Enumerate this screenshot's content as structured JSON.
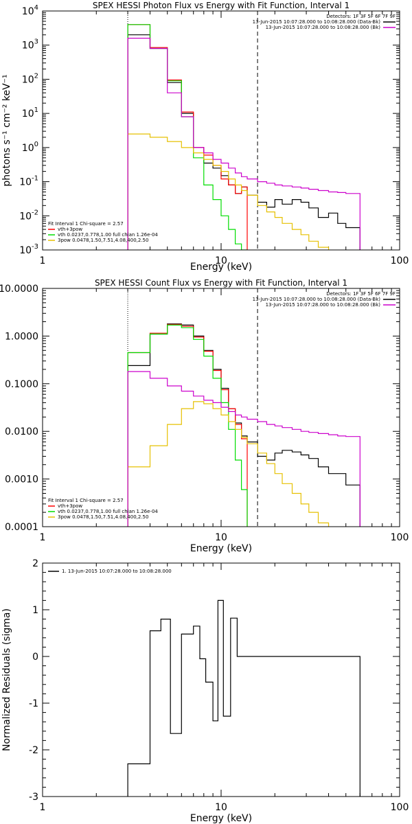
{
  "chart_data": [
    {
      "type": "line",
      "title": "SPEX HESSI Photon Flux vs Energy with Fit Function, Interval 1",
      "xlabel": "Energy (keV)",
      "ylabel": "photons s⁻¹ cm⁻² keV⁻¹",
      "xscale": "log",
      "yscale": "log",
      "xlim": [
        1,
        100
      ],
      "ylim": [
        0.001,
        10000
      ],
      "xticks": [
        {
          "v": 1,
          "label": "1"
        },
        {
          "v": 10,
          "label": "10"
        },
        {
          "v": 100,
          "label": "100"
        }
      ],
      "yticks": [
        {
          "v": 0.001,
          "base": "10",
          "exp": "-3"
        },
        {
          "v": 0.01,
          "base": "10",
          "exp": "-2"
        },
        {
          "v": 0.1,
          "base": "10",
          "exp": "-1"
        },
        {
          "v": 1,
          "base": "10",
          "exp": "0"
        },
        {
          "v": 10,
          "base": "10",
          "exp": "1"
        },
        {
          "v": 100,
          "base": "10",
          "exp": "2"
        },
        {
          "v": 1000,
          "base": "10",
          "exp": "3"
        },
        {
          "v": 10000,
          "base": "10",
          "exp": "4"
        }
      ],
      "vlines": [
        {
          "x": 3.0,
          "style": "dotted"
        },
        {
          "x": 16.0,
          "style": "dashed"
        }
      ],
      "legend_tr": {
        "header": "Detectors: 1F 3F 5F 6F 7F 9F",
        "entries": [
          {
            "label": "13-Jun-2015 10:07:28.000 to 10:08:28.000 (Data-Bk)",
            "color": "#000000"
          },
          {
            "label": "13-Jun-2015 10:07:28.000 to 10:08:28.000 (Bk)",
            "color": "#cc00cc"
          }
        ]
      },
      "legend_bl": {
        "header": "Fit Interval 1     Chi-square = 2.57",
        "entries": [
          {
            "label": "vth+3pow",
            "color": "#ff0000"
          },
          {
            "label": "vth 0.0237,0.778,1.00  full chian 1.26e-04",
            "color": "#00dd00"
          },
          {
            "label": "3pow 0.0478,1.50,7.51,4.08,400,2.50",
            "color": "#e6c000"
          }
        ]
      },
      "series": [
        {
          "name": "13-Jun-2015 10:07:28.000 to 10:08:28.000 (Data-Bk)",
          "color": "#000000",
          "edges": [
            3.0,
            4.0,
            5.0,
            6.0,
            7.0,
            8.0,
            9.0,
            10.0,
            11.0,
            12.0,
            13.0,
            14.0,
            16.0,
            18.0,
            20.0,
            22.0,
            25.0,
            28.0,
            31.0,
            35.0,
            40.0,
            45.0,
            50.0,
            60.0
          ],
          "values": [
            2000,
            800,
            80,
            10,
            1.0,
            0.35,
            0.25,
            0.15,
            0.08,
            0.045,
            0.07,
            0.04,
            0.025,
            0.018,
            0.03,
            0.022,
            0.03,
            0.025,
            0.017,
            0.009,
            0.012,
            0.006,
            0.0045
          ]
        },
        {
          "name": "vth+3pow",
          "color": "#ff0000",
          "edges": [
            3.0,
            4.0,
            5.0,
            6.0,
            7.0,
            8.0,
            9.0,
            10.0,
            11.0,
            12.0,
            13.0,
            14.0
          ],
          "values": [
            4000,
            850,
            95,
            11,
            1.0,
            0.6,
            0.3,
            0.12,
            0.08,
            0.045,
            0.07
          ]
        },
        {
          "name": "vth 0.0237,0.778,1.00  full chian 1.26e-04",
          "color": "#00dd00",
          "edges": [
            3.0,
            4.0,
            5.0,
            6.0,
            7.0,
            8.0,
            9.0,
            10.0,
            11.0,
            12.0,
            13.0,
            14.0
          ],
          "values": [
            4000,
            800,
            90,
            8,
            0.5,
            0.08,
            0.03,
            0.01,
            0.004,
            0.0015,
            0.001
          ]
        },
        {
          "name": "3pow 0.0478,1.50,7.51,4.08,400,2.50",
          "color": "#e6c000",
          "edges": [
            3.0,
            4.0,
            5.0,
            6.0,
            7.0,
            8.0,
            9.0,
            10.0,
            11.0,
            12.0,
            13.0,
            14.0,
            16.0,
            18.0,
            20.0,
            22.0,
            25.0,
            28.0,
            31.0,
            35.0,
            40.0
          ],
          "values": [
            2.5,
            2.0,
            1.5,
            1.0,
            0.7,
            0.45,
            0.3,
            0.2,
            0.12,
            0.08,
            0.055,
            0.04,
            0.02,
            0.013,
            0.009,
            0.006,
            0.004,
            0.0028,
            0.0018,
            0.0012
          ]
        },
        {
          "name": "13-Jun-2015 10:07:28.000 to 10:08:28.000 (Bk)",
          "color": "#cc00cc",
          "edges": [
            3.0,
            4.0,
            5.0,
            6.0,
            7.0,
            8.0,
            9.0,
            10.0,
            11.0,
            12.0,
            13.0,
            14.0,
            16.0,
            18.0,
            20.0,
            22.0,
            25.0,
            28.0,
            31.0,
            35.0,
            40.0,
            45.0,
            50.0,
            60.0
          ],
          "values": [
            1600,
            800,
            40,
            8,
            1.0,
            0.7,
            0.45,
            0.35,
            0.25,
            0.18,
            0.14,
            0.12,
            0.1,
            0.09,
            0.08,
            0.075,
            0.07,
            0.065,
            0.06,
            0.055,
            0.05,
            0.048,
            0.045
          ]
        }
      ]
    },
    {
      "type": "line",
      "title": "SPEX HESSI Count Flux vs Energy with Fit Function, Interval 1",
      "xlabel": "Energy (keV)",
      "ylabel": "",
      "xscale": "log",
      "yscale": "log",
      "xlim": [
        1,
        100
      ],
      "ylim": [
        0.0001,
        10
      ],
      "xticks": [
        {
          "v": 1,
          "label": "1"
        },
        {
          "v": 10,
          "label": "10"
        },
        {
          "v": 100,
          "label": "100"
        }
      ],
      "yticks": [
        {
          "v": 0.0001,
          "label": "0.0001"
        },
        {
          "v": 0.001,
          "label": "0.0010"
        },
        {
          "v": 0.01,
          "label": "0.0100"
        },
        {
          "v": 0.1,
          "label": "0.1000"
        },
        {
          "v": 1,
          "label": "1.0000"
        },
        {
          "v": 10,
          "label": "10.0000"
        }
      ],
      "vlines": [
        {
          "x": 3.0,
          "style": "dotted"
        },
        {
          "x": 16.0,
          "style": "dashed"
        }
      ],
      "legend_tr": {
        "header": "Detectors: 1F 3F 5F 6F 7F 9F",
        "entries": [
          {
            "label": "13-Jun-2015 10:07:28.000 to 10:08:28.000 (Data-Bk)",
            "color": "#000000"
          },
          {
            "label": "13-Jun-2015 10:07:28.000 to 10:08:28.000 (Bk)",
            "color": "#cc00cc"
          }
        ]
      },
      "legend_bl": {
        "header": "Fit Interval 1     Chi-square = 2.57",
        "entries": [
          {
            "label": "vth+3pow",
            "color": "#ff0000"
          },
          {
            "label": "vth 0.0237,0.778,1.00  full chian 1.26e-04",
            "color": "#00dd00"
          },
          {
            "label": "3pow 0.0478,1.50,7.51,4.08,400,2.50",
            "color": "#e6c000"
          }
        ]
      },
      "series": [
        {
          "name": "13-Jun-2015 10:07:28.000 to 10:08:28.000 (Data-Bk)",
          "color": "#000000",
          "edges": [
            3.0,
            4.0,
            5.0,
            6.0,
            7.0,
            8.0,
            9.0,
            10.0,
            11.0,
            12.0,
            13.0,
            14.0,
            16.0,
            18.0,
            20.0,
            22.0,
            25.0,
            28.0,
            31.0,
            35.0,
            40.0,
            45.0,
            50.0,
            60.0
          ],
          "values": [
            0.24,
            1.1,
            1.8,
            1.7,
            1.0,
            0.5,
            0.2,
            0.08,
            0.03,
            0.015,
            0.008,
            0.006,
            0.003,
            0.0025,
            0.0035,
            0.004,
            0.0037,
            0.0032,
            0.0027,
            0.0018,
            0.0013,
            0.0013,
            0.00075
          ]
        },
        {
          "name": "vth+3pow",
          "color": "#ff0000",
          "edges": [
            3.0,
            4.0,
            5.0,
            6.0,
            7.0,
            8.0,
            9.0,
            10.0,
            11.0,
            12.0,
            13.0,
            14.0
          ],
          "values": [
            0.45,
            1.15,
            1.75,
            1.6,
            0.95,
            0.48,
            0.19,
            0.075,
            0.03,
            0.014,
            0.007
          ]
        },
        {
          "name": "vth 0.0237,0.778,1.00  full chian 1.26e-04",
          "color": "#00dd00",
          "edges": [
            3.0,
            4.0,
            5.0,
            6.0,
            7.0,
            8.0,
            9.0,
            10.0,
            11.0,
            12.0,
            13.0,
            14.0
          ],
          "values": [
            0.45,
            1.1,
            1.7,
            1.5,
            0.85,
            0.38,
            0.13,
            0.04,
            0.011,
            0.0025,
            0.0006
          ]
        },
        {
          "name": "3pow 0.0478,1.50,7.51,4.08,400,2.50",
          "color": "#e6c000",
          "edges": [
            3.0,
            4.0,
            5.0,
            6.0,
            7.0,
            8.0,
            9.0,
            10.0,
            11.0,
            12.0,
            13.0,
            14.0,
            16.0,
            18.0,
            20.0,
            22.0,
            25.0,
            28.0,
            31.0,
            35.0,
            40.0
          ],
          "values": [
            0.0018,
            0.005,
            0.014,
            0.03,
            0.042,
            0.038,
            0.03,
            0.022,
            0.016,
            0.011,
            0.0075,
            0.0055,
            0.0035,
            0.0021,
            0.0013,
            0.0008,
            0.0005,
            0.0003,
            0.0002,
            0.00012
          ]
        },
        {
          "name": "13-Jun-2015 10:07:28.000 to 10:08:28.000 (Bk)",
          "color": "#cc00cc",
          "edges": [
            3.0,
            4.0,
            5.0,
            6.0,
            7.0,
            8.0,
            9.0,
            10.0,
            11.0,
            12.0,
            13.0,
            14.0,
            16.0,
            18.0,
            20.0,
            22.0,
            25.0,
            28.0,
            31.0,
            35.0,
            40.0,
            45.0,
            50.0,
            60.0
          ],
          "values": [
            0.18,
            0.13,
            0.09,
            0.07,
            0.055,
            0.045,
            0.04,
            0.032,
            0.026,
            0.022,
            0.02,
            0.018,
            0.016,
            0.014,
            0.013,
            0.012,
            0.011,
            0.01,
            0.0095,
            0.009,
            0.0085,
            0.008,
            0.0078
          ]
        }
      ]
    },
    {
      "type": "line",
      "title": "",
      "xlabel": "Energy (keV)",
      "ylabel": "Normalized Residuals (sigma)",
      "xscale": "log",
      "yscale": "linear",
      "xlim": [
        1,
        100
      ],
      "ylim": [
        -3,
        2
      ],
      "xticks": [
        {
          "v": 1,
          "label": "1"
        },
        {
          "v": 10,
          "label": "10"
        },
        {
          "v": 100,
          "label": "100"
        }
      ],
      "yticks": [
        {
          "v": -3,
          "label": "-3"
        },
        {
          "v": -2,
          "label": "-2"
        },
        {
          "v": -1,
          "label": "-1"
        },
        {
          "v": 0,
          "label": "0"
        },
        {
          "v": 1,
          "label": "1"
        },
        {
          "v": 2,
          "label": "2"
        }
      ],
      "vlines": [],
      "legend_tr": null,
      "legend_bl": null,
      "legend_tl": {
        "entries": [
          {
            "label": "1. 13-Jun-2015 10:07:28.000 to 10:08:28.000",
            "color": "#000000"
          }
        ]
      },
      "series": [
        {
          "name": "1. 13-Jun-2015 10:07:28.000 to 10:08:28.000",
          "color": "#000000",
          "edges": [
            3.0,
            4.0,
            4.6,
            5.2,
            6.0,
            7.0,
            7.6,
            8.2,
            9.0,
            9.6,
            10.3,
            11.3,
            12.3,
            13.0,
            14.0,
            15.0,
            16.0,
            20.0,
            30.0,
            40.0,
            60.0
          ],
          "values": [
            -2.3,
            0.55,
            0.8,
            -1.65,
            0.48,
            0.65,
            -0.05,
            -0.55,
            -1.38,
            1.2,
            -1.28,
            0.82,
            0,
            0,
            0,
            0,
            0,
            0,
            0,
            0
          ]
        }
      ]
    }
  ]
}
